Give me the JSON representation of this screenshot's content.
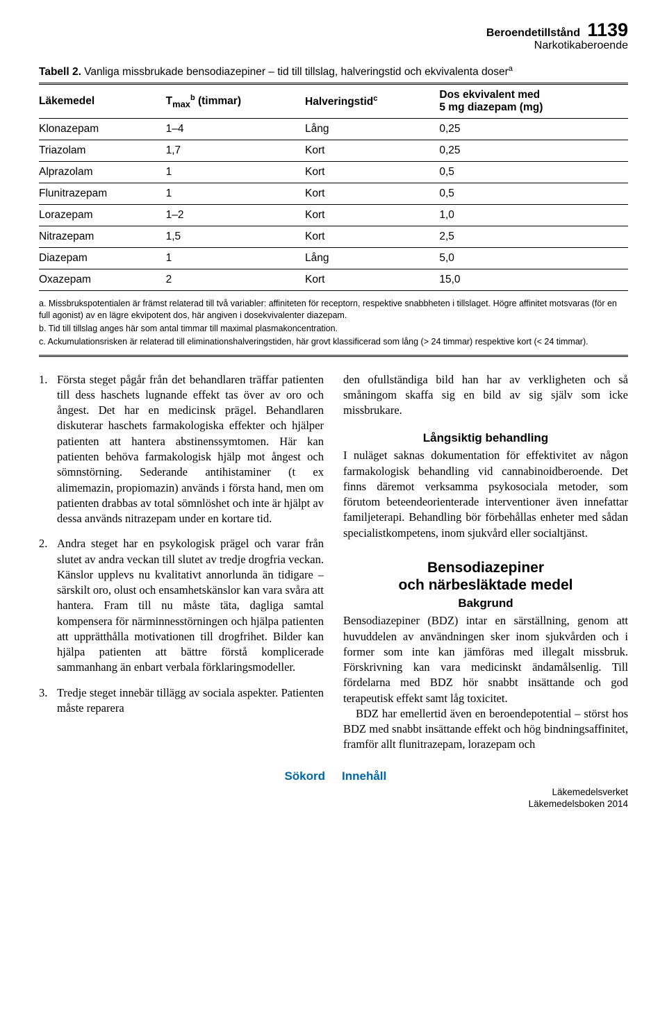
{
  "header": {
    "topic": "Beroendetillstånd",
    "subtopic": "Narkotikaberoende",
    "page_number": "1139"
  },
  "table": {
    "label": "Tabell 2.",
    "caption": "Vanliga missbrukade bensodiazepiner – tid till tillslag, halveringstid och ekvivalenta doser",
    "caption_sup": "a",
    "columns": [
      {
        "label": "Läkemedel"
      },
      {
        "label_pre": "T",
        "label_sub": "max",
        "label_sup": "b",
        "label_post": " (timmar)"
      },
      {
        "label": "Halveringstid",
        "label_sup": "c"
      },
      {
        "label_pre": "Dos ekvivalent med",
        "label_post": "5 mg diazepam (mg)"
      }
    ],
    "rows": [
      [
        "Klonazepam",
        "1–4",
        "Lång",
        "0,25"
      ],
      [
        "Triazolam",
        "1,7",
        "Kort",
        "0,25"
      ],
      [
        "Alprazolam",
        "1",
        "Kort",
        "0,5"
      ],
      [
        "Flunitrazepam",
        "1",
        "Kort",
        "0,5"
      ],
      [
        "Lorazepam",
        "1–2",
        "Kort",
        "1,0"
      ],
      [
        "Nitrazepam",
        "1,5",
        "Kort",
        "2,5"
      ],
      [
        "Diazepam",
        "1",
        "Lång",
        "5,0"
      ],
      [
        "Oxazepam",
        "2",
        "Kort",
        "15,0"
      ]
    ],
    "footnotes": [
      "a. Missbrukspotentialen är främst relaterad till två variabler: affiniteten för receptorn, respektive snabbheten i tillslaget. Högre affinitet motsvaras (för en full agonist) av en lägre ekvipotent dos, här angiven i dosekvivalenter diazepam.",
      "b. Tid till tillslag anges här som antal timmar till maximal plasmakoncentration.",
      "c. Ackumulationsrisken är relaterad till eliminationshalveringstiden, här grovt klassificerad som lång (> 24 timmar) respektive kort (< 24 timmar)."
    ]
  },
  "left_col": {
    "items": [
      {
        "num": "1.",
        "text": "Första steget pågår från det behandlaren träffar patienten till dess haschets lugnande effekt tas över av oro och ångest. Det har en medicinsk prägel. Behandlaren diskuterar haschets farmakologiska effekter och hjälper patienten att hantera abstinenssymtomen. Här kan patienten behöva farmakologisk hjälp mot ångest och sömnstörning. Sederande antihistaminer (t ex alimemazin, propiomazin) används i första hand, men om patienten drabbas av total sömnlöshet och inte är hjälpt av dessa används nitrazepam under en kortare tid."
      },
      {
        "num": "2.",
        "text": "Andra steget har en psykologisk prägel och varar från slutet av andra veckan till slutet av tredje drogfria veckan. Känslor upplevs nu kvalitativt annorlunda än tidigare – särskilt oro, olust och ensamhetskänslor kan vara svåra att hantera. Fram till nu måste täta, dagliga samtal kompensera för närminnesstörningen och hjälpa patienten att upprätthålla motivationen till drogfrihet. Bilder kan hjälpa patienten att bättre förstå komplicerade sammanhang än enbart verbala förklaringsmodeller."
      },
      {
        "num": "3.",
        "text": "Tredje steget innebär tillägg av sociala aspekter. Patienten måste reparera"
      }
    ]
  },
  "right_col": {
    "intro": "den ofullständiga bild han har av verkligheten och så småningom skaffa sig en bild av sig själv som icke missbrukare.",
    "h3_1": "Långsiktig behandling",
    "p1": "I nuläget saknas dokumentation för effektivitet av någon farmakologisk behandling vid cannabinoidberoende. Det finns däremot verksamma psykosociala metoder, som förutom beteendeorienterade interventioner även innefattar familjeterapi. Behandling bör förbehållas enheter med sådan specialistkompetens, inom sjukvård eller socialtjänst.",
    "h2_a": "Bensodiazepiner",
    "h2_b": "och närbesläktade medel",
    "h3_2": "Bakgrund",
    "p2": "Bensodiazepiner (BDZ) intar en särställning, genom att huvuddelen av användningen sker inom sjukvården och i former som inte kan jämföras med illegalt missbruk. Förskrivning kan vara medicinskt ändamålsenlig. Till fördelarna med BDZ hör snabbt insättande och god terapeutisk effekt samt låg toxicitet.",
    "p3": "BDZ har emellertid även en beroendepotential – störst hos BDZ med snabbt insättande effekt och hög bindningsaffinitet, framför allt flunitrazepam, lorazepam och"
  },
  "footer": {
    "sokord": "Sökord",
    "innehall": "Innehåll",
    "publisher": "Läkemedelsverket",
    "book": "Läkemedelsboken 2014"
  }
}
